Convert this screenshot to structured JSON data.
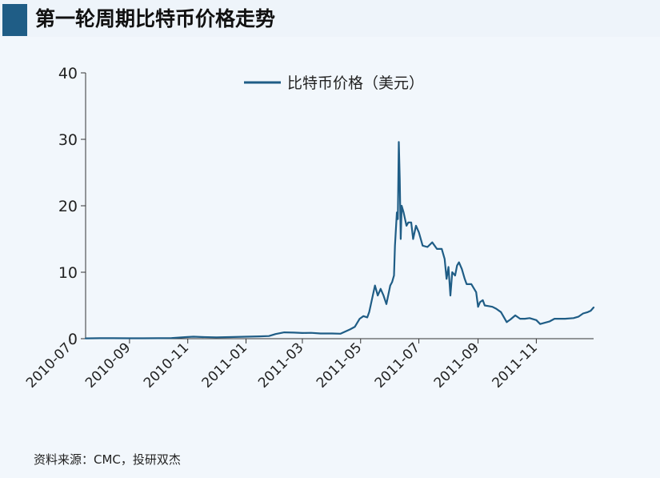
{
  "title": "第一轮周期比特币价格走势",
  "source": "资料来源：CMC，投研双杰",
  "colors": {
    "series": "#1f5d86",
    "title_accent": "#1f5d86",
    "background": "#f2f7fc",
    "axis": "#333333"
  },
  "chart_data": {
    "type": "line",
    "title": "第一轮周期比特币价格走势",
    "xlabel": "",
    "ylabel": "",
    "ylim": [
      0,
      40
    ],
    "yticks": [
      0,
      10,
      20,
      30,
      40
    ],
    "xlim": [
      "2010-07-17",
      "2011-12-31"
    ],
    "xticks": [
      "2010-07",
      "2010-09",
      "2010-11",
      "2011-01",
      "2011-03",
      "2011-05",
      "2011-07",
      "2011-09",
      "2011-11"
    ],
    "legend": "top-center",
    "grid": false,
    "series": [
      {
        "name": "比特币价格（美元）",
        "x": [
          "2010-07-17",
          "2010-08-01",
          "2010-08-15",
          "2010-09-01",
          "2010-09-15",
          "2010-10-01",
          "2010-10-15",
          "2010-11-01",
          "2010-11-07",
          "2010-11-15",
          "2010-12-01",
          "2010-12-15",
          "2011-01-01",
          "2011-01-15",
          "2011-01-25",
          "2011-02-01",
          "2011-02-10",
          "2011-02-20",
          "2011-03-01",
          "2011-03-10",
          "2011-03-20",
          "2011-04-01",
          "2011-04-10",
          "2011-04-20",
          "2011-04-25",
          "2011-04-30",
          "2011-05-04",
          "2011-05-08",
          "2011-05-10",
          "2011-05-13",
          "2011-05-16",
          "2011-05-19",
          "2011-05-22",
          "2011-05-25",
          "2011-05-28",
          "2011-06-01",
          "2011-06-03",
          "2011-06-05",
          "2011-06-06",
          "2011-06-08",
          "2011-06-09",
          "2011-06-10",
          "2011-06-11",
          "2011-06-12",
          "2011-06-13",
          "2011-06-15",
          "2011-06-18",
          "2011-06-20",
          "2011-06-23",
          "2011-06-25",
          "2011-06-28",
          "2011-07-01",
          "2011-07-05",
          "2011-07-10",
          "2011-07-15",
          "2011-07-20",
          "2011-07-25",
          "2011-07-28",
          "2011-07-30",
          "2011-08-01",
          "2011-08-03",
          "2011-08-05",
          "2011-08-08",
          "2011-08-10",
          "2011-08-12",
          "2011-08-15",
          "2011-08-18",
          "2011-08-20",
          "2011-08-25",
          "2011-08-30",
          "2011-09-01",
          "2011-09-03",
          "2011-09-06",
          "2011-09-08",
          "2011-09-12",
          "2011-09-16",
          "2011-09-20",
          "2011-09-25",
          "2011-10-01",
          "2011-10-05",
          "2011-10-10",
          "2011-10-15",
          "2011-10-20",
          "2011-10-25",
          "2011-11-01",
          "2011-11-05",
          "2011-11-10",
          "2011-11-15",
          "2011-11-20",
          "2011-11-25",
          "2011-12-01",
          "2011-12-10",
          "2011-12-15",
          "2011-12-20",
          "2011-12-25",
          "2011-12-28",
          "2011-12-31"
        ],
        "values": [
          0.05,
          0.07,
          0.07,
          0.06,
          0.06,
          0.07,
          0.1,
          0.25,
          0.3,
          0.25,
          0.2,
          0.24,
          0.3,
          0.35,
          0.4,
          0.7,
          0.95,
          0.92,
          0.85,
          0.88,
          0.78,
          0.78,
          0.75,
          1.4,
          1.8,
          3.0,
          3.4,
          3.2,
          4.0,
          6.0,
          8.0,
          6.5,
          7.5,
          6.5,
          5.2,
          8.0,
          8.5,
          9.5,
          14.0,
          19.0,
          18.0,
          29.6,
          24.0,
          15.0,
          20.0,
          19.0,
          17.0,
          17.5,
          17.5,
          15.0,
          17.0,
          16.0,
          14.0,
          13.8,
          14.5,
          13.5,
          13.5,
          12.0,
          9.0,
          10.8,
          6.5,
          10.0,
          9.5,
          11.0,
          11.5,
          10.5,
          9.0,
          8.2,
          8.2,
          7.0,
          4.8,
          5.5,
          5.8,
          5.0,
          4.9,
          4.8,
          4.5,
          4.0,
          2.5,
          2.9,
          3.5,
          3.0,
          3.0,
          3.1,
          2.8,
          2.2,
          2.4,
          2.6,
          3.0,
          3.0,
          3.0,
          3.1,
          3.3,
          3.8,
          4.0,
          4.2,
          4.7
        ]
      }
    ]
  }
}
